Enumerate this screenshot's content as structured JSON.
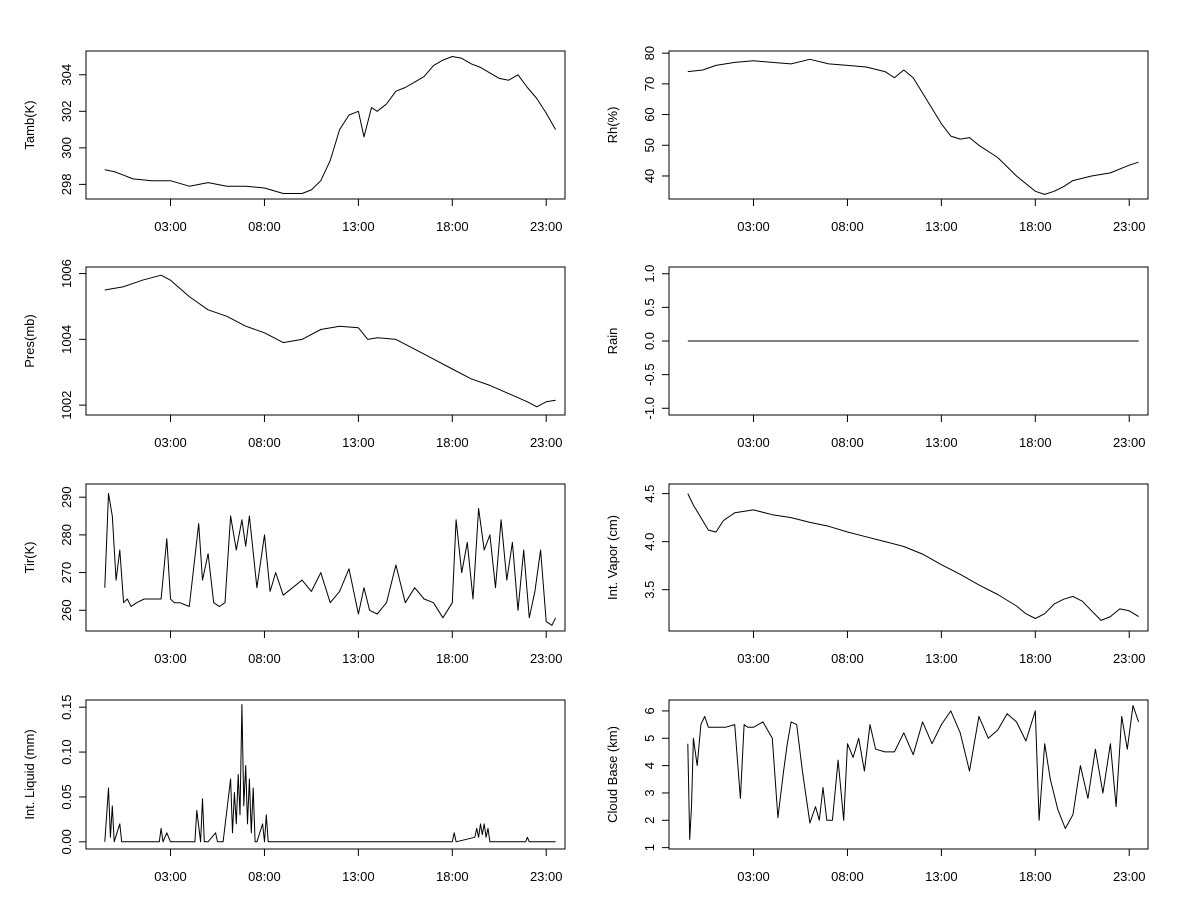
{
  "chart_data": [
    {
      "type": "line",
      "title": "",
      "xlabel": "",
      "ylabel": "Tamb(K)",
      "xlim": [
        -1.5,
        24.0
      ],
      "ylim": [
        297.2,
        305.3
      ],
      "x_ticks": [
        3,
        8,
        13,
        18,
        23
      ],
      "x_tick_labels": [
        "03:00",
        "08:00",
        "13:00",
        "18:00",
        "23:00"
      ],
      "y_ticks": [
        298,
        300,
        302,
        304
      ],
      "y_tick_labels": [
        "298",
        "300",
        "302",
        "304"
      ],
      "series": [
        {
          "name": "Tamb",
          "x": [
            -0.5,
            0,
            0.5,
            1,
            2,
            3,
            4,
            5,
            6,
            7,
            8,
            9,
            10,
            10.5,
            11,
            11.5,
            12,
            12.5,
            13,
            13.3,
            13.7,
            14,
            14.5,
            15,
            15.5,
            16,
            16.5,
            17,
            17.5,
            18,
            18.5,
            19,
            19.5,
            20,
            20.5,
            21,
            21.5,
            22,
            22.5,
            23,
            23.5
          ],
          "y": [
            298.8,
            298.7,
            298.5,
            298.3,
            298.2,
            298.2,
            297.9,
            298.1,
            297.9,
            297.9,
            297.8,
            297.5,
            297.5,
            297.7,
            298.2,
            299.3,
            301.0,
            301.8,
            302.0,
            300.6,
            302.2,
            302.0,
            302.4,
            303.1,
            303.3,
            303.6,
            303.9,
            304.5,
            304.8,
            305.0,
            304.9,
            304.6,
            304.4,
            304.1,
            303.8,
            303.7,
            304.0,
            303.3,
            302.7,
            301.9,
            301.0
          ]
        }
      ]
    },
    {
      "type": "line",
      "title": "",
      "xlabel": "",
      "ylabel": "Rh(%)",
      "xlim": [
        -1.5,
        24.0
      ],
      "ylim": [
        32.5,
        80.7
      ],
      "x_ticks": [
        3,
        8,
        13,
        18,
        23
      ],
      "x_tick_labels": [
        "03:00",
        "08:00",
        "13:00",
        "18:00",
        "23:00"
      ],
      "y_ticks": [
        40,
        50,
        60,
        70,
        80
      ],
      "y_tick_labels": [
        "40",
        "50",
        "60",
        "70",
        "80"
      ],
      "series": [
        {
          "name": "Rh",
          "x": [
            -0.5,
            0.3,
            1,
            2,
            3,
            4,
            5,
            6,
            7,
            8,
            9,
            10,
            10.5,
            11,
            11.5,
            12,
            12.5,
            13,
            13.5,
            14,
            14.5,
            15,
            16,
            17,
            17.5,
            18,
            18.5,
            19,
            19.5,
            20,
            21,
            22,
            23,
            23.5
          ],
          "y": [
            74,
            74.5,
            76,
            77,
            77.5,
            77,
            76.5,
            78,
            76.5,
            76,
            75.5,
            74,
            72,
            74.5,
            72,
            67,
            62,
            57,
            53,
            52,
            52.5,
            50,
            46,
            40,
            37.5,
            35,
            34,
            35,
            36.5,
            38.5,
            40,
            41,
            43.5,
            44.5
          ]
        }
      ]
    },
    {
      "type": "line",
      "title": "",
      "xlabel": "",
      "ylabel": "Pres(mb)",
      "xlim": [
        -1.5,
        24.0
      ],
      "ylim": [
        1001.7,
        1006.2
      ],
      "x_ticks": [
        3,
        8,
        13,
        18,
        23
      ],
      "x_tick_labels": [
        "03:00",
        "08:00",
        "13:00",
        "18:00",
        "23:00"
      ],
      "y_ticks": [
        1002,
        1004,
        1006
      ],
      "y_tick_labels": [
        "1002",
        "1004",
        "1006"
      ],
      "series": [
        {
          "name": "Pres",
          "x": [
            -0.5,
            0.5,
            1.5,
            2.5,
            3,
            4,
            5,
            6,
            7,
            8,
            9,
            10,
            11,
            12,
            13,
            13.5,
            14,
            15,
            16,
            17,
            18,
            19,
            20,
            21,
            22,
            22.5,
            23,
            23.5
          ],
          "y": [
            1005.5,
            1005.6,
            1005.8,
            1005.95,
            1005.8,
            1005.3,
            1004.9,
            1004.7,
            1004.4,
            1004.2,
            1003.9,
            1004.0,
            1004.3,
            1004.4,
            1004.35,
            1004.0,
            1004.05,
            1004.0,
            1003.7,
            1003.4,
            1003.1,
            1002.8,
            1002.6,
            1002.35,
            1002.1,
            1001.95,
            1002.1,
            1002.15
          ]
        }
      ]
    },
    {
      "type": "line",
      "title": "",
      "xlabel": "",
      "ylabel": "Rain",
      "xlim": [
        -1.5,
        24.0
      ],
      "ylim": [
        -1.1,
        1.1
      ],
      "x_ticks": [
        3,
        8,
        13,
        18,
        23
      ],
      "x_tick_labels": [
        "03:00",
        "08:00",
        "13:00",
        "18:00",
        "23:00"
      ],
      "y_ticks": [
        -1.0,
        -0.5,
        0.0,
        0.5,
        1.0
      ],
      "y_tick_labels": [
        "-1.0",
        "-0.5",
        "0.0",
        "0.5",
        "1.0"
      ],
      "series": [
        {
          "name": "Rain",
          "x": [
            -0.5,
            23.5
          ],
          "y": [
            0.0,
            0.0
          ]
        }
      ]
    },
    {
      "type": "line",
      "title": "",
      "xlabel": "",
      "ylabel": "Tir(K)",
      "xlim": [
        -1.5,
        24.0
      ],
      "ylim": [
        254.5,
        293.5
      ],
      "x_ticks": [
        3,
        8,
        13,
        18,
        23
      ],
      "x_tick_labels": [
        "03:00",
        "08:00",
        "13:00",
        "18:00",
        "23:00"
      ],
      "y_ticks": [
        260,
        270,
        280,
        290
      ],
      "y_tick_labels": [
        "260",
        "270",
        "280",
        "290"
      ],
      "series": [
        {
          "name": "Tir",
          "x": [
            -0.5,
            -0.3,
            -0.1,
            0.1,
            0.3,
            0.5,
            0.7,
            0.9,
            1.2,
            1.6,
            2,
            2.5,
            2.8,
            3.0,
            3.2,
            3.5,
            4,
            4.5,
            4.7,
            5.0,
            5.3,
            5.6,
            5.9,
            6.2,
            6.5,
            6.8,
            7.0,
            7.2,
            7.6,
            8.0,
            8.3,
            8.6,
            9.0,
            9.5,
            10,
            10.5,
            11,
            11.5,
            12,
            12.5,
            13,
            13.3,
            13.6,
            14,
            14.5,
            15,
            15.5,
            16,
            16.5,
            17,
            17.5,
            18,
            18.2,
            18.5,
            18.8,
            19.1,
            19.4,
            19.7,
            20,
            20.3,
            20.6,
            20.9,
            21.2,
            21.5,
            21.8,
            22.1,
            22.4,
            22.7,
            23.0,
            23.3,
            23.5
          ],
          "y": [
            266,
            291,
            285,
            268,
            276,
            262,
            263,
            261,
            262,
            263,
            263,
            263,
            279,
            263,
            262,
            262,
            261,
            283,
            268,
            275,
            262,
            261,
            262,
            285,
            276,
            284,
            277,
            285,
            266,
            280,
            265,
            270,
            264,
            266,
            268,
            265,
            270,
            262,
            265,
            271,
            259,
            266,
            260,
            259,
            262,
            272,
            262,
            266,
            263,
            262,
            258,
            262,
            284,
            270,
            278,
            263,
            287,
            276,
            280,
            266,
            284,
            268,
            278,
            260,
            276,
            258,
            265,
            276,
            257,
            256,
            258
          ]
        }
      ]
    },
    {
      "type": "line",
      "title": "",
      "xlabel": "",
      "ylabel": "Int. Vapor (cm)",
      "xlim": [
        -1.5,
        24.0
      ],
      "ylim": [
        3.07,
        4.6
      ],
      "x_ticks": [
        3,
        8,
        13,
        18,
        23
      ],
      "x_tick_labels": [
        "03:00",
        "08:00",
        "13:00",
        "18:00",
        "23:00"
      ],
      "y_ticks": [
        3.5,
        4.0,
        4.5
      ],
      "y_tick_labels": [
        "3.5",
        "4.0",
        "4.5"
      ],
      "series": [
        {
          "name": "Int. Vapor",
          "x": [
            -0.5,
            -0.2,
            0.2,
            0.6,
            1.0,
            1.4,
            2,
            3,
            4,
            5,
            6,
            7,
            8,
            9,
            10,
            11,
            12,
            13,
            14,
            15,
            16,
            17,
            17.5,
            18,
            18.5,
            19,
            19.5,
            20,
            20.5,
            21,
            21.5,
            22,
            22.5,
            23,
            23.5
          ],
          "y": [
            4.5,
            4.38,
            4.25,
            4.12,
            4.1,
            4.22,
            4.3,
            4.33,
            4.28,
            4.25,
            4.2,
            4.16,
            4.1,
            4.05,
            4.0,
            3.95,
            3.87,
            3.76,
            3.66,
            3.55,
            3.45,
            3.33,
            3.25,
            3.2,
            3.25,
            3.35,
            3.4,
            3.43,
            3.38,
            3.28,
            3.18,
            3.22,
            3.3,
            3.28,
            3.22
          ]
        }
      ]
    },
    {
      "type": "line",
      "title": "",
      "xlabel": "",
      "ylabel": "Int. Liquid (mm)",
      "xlim": [
        -1.5,
        24.0
      ],
      "ylim": [
        -0.008,
        0.158
      ],
      "x_ticks": [
        3,
        8,
        13,
        18,
        23
      ],
      "x_tick_labels": [
        "03:00",
        "08:00",
        "13:00",
        "18:00",
        "23:00"
      ],
      "y_ticks": [
        0.0,
        0.05,
        0.1,
        0.15
      ],
      "y_tick_labels": [
        "0.00",
        "0.05",
        "0.10",
        "0.15"
      ],
      "series": [
        {
          "name": "Int. Liquid",
          "x": [
            -0.5,
            -0.3,
            -0.2,
            -0.1,
            0.0,
            0.3,
            0.4,
            0.6,
            2.4,
            2.5,
            2.6,
            2.8,
            3.0,
            4.3,
            4.4,
            4.6,
            4.7,
            4.8,
            5.0,
            5.4,
            5.5,
            5.8,
            6.2,
            6.3,
            6.4,
            6.5,
            6.6,
            6.7,
            6.8,
            6.9,
            7.0,
            7.1,
            7.2,
            7.3,
            7.4,
            7.5,
            7.6,
            7.9,
            8.0,
            8.1,
            8.2,
            18.0,
            18.1,
            18.2,
            19.2,
            19.3,
            19.4,
            19.5,
            19.6,
            19.7,
            19.8,
            19.9,
            20.0,
            21.9,
            22.0,
            22.1,
            23.5
          ],
          "y": [
            0,
            0.06,
            0.005,
            0.04,
            0,
            0.02,
            0,
            0,
            0,
            0.015,
            0,
            0.01,
            0,
            0,
            0.035,
            0,
            0.048,
            0,
            0,
            0.01,
            0,
            0,
            0.07,
            0.01,
            0.055,
            0.02,
            0.075,
            0.03,
            0.153,
            0.04,
            0.085,
            0.02,
            0.07,
            0.01,
            0.06,
            0,
            0,
            0.02,
            0,
            0.03,
            0,
            0,
            0.01,
            0,
            0.005,
            0.015,
            0.005,
            0.02,
            0.008,
            0.02,
            0.005,
            0.015,
            0,
            0,
            0.005,
            0,
            0
          ]
        }
      ]
    },
    {
      "type": "line",
      "title": "",
      "xlabel": "",
      "ylabel": "Cloud Base (km)",
      "xlim": [
        -1.5,
        24.0
      ],
      "ylim": [
        0.95,
        6.4
      ],
      "x_ticks": [
        3,
        8,
        13,
        18,
        23
      ],
      "x_tick_labels": [
        "03:00",
        "08:00",
        "13:00",
        "18:00",
        "23:00"
      ],
      "y_ticks": [
        1,
        2,
        3,
        4,
        5,
        6
      ],
      "y_tick_labels": [
        "1",
        "2",
        "3",
        "4",
        "5",
        "6"
      ],
      "series": [
        {
          "name": "Cloud Base",
          "x": [
            -0.5,
            -0.4,
            -0.3,
            -0.2,
            0.0,
            0.2,
            0.4,
            0.6,
            1.0,
            1.5,
            2.0,
            2.3,
            2.5,
            2.7,
            3.0,
            3.5,
            4.0,
            4.3,
            4.6,
            4.8,
            5.0,
            5.3,
            5.6,
            6.0,
            6.3,
            6.5,
            6.7,
            6.9,
            7.2,
            7.5,
            7.8,
            8.0,
            8.3,
            8.6,
            8.9,
            9.2,
            9.5,
            10.0,
            10.5,
            11.0,
            11.5,
            12,
            12.5,
            13,
            13.5,
            14,
            14.5,
            15,
            15.5,
            16,
            16.5,
            17,
            17.5,
            18.0,
            18.2,
            18.5,
            18.8,
            19.2,
            19.6,
            20.0,
            20.4,
            20.8,
            21.2,
            21.6,
            22.0,
            22.3,
            22.6,
            22.9,
            23.2,
            23.5
          ],
          "y": [
            4.8,
            1.3,
            2.5,
            5.0,
            4.0,
            5.5,
            5.8,
            5.4,
            5.4,
            5.4,
            5.5,
            2.8,
            5.5,
            5.4,
            5.4,
            5.6,
            5.0,
            2.1,
            3.8,
            4.8,
            5.6,
            5.5,
            3.8,
            1.9,
            2.5,
            2.0,
            3.2,
            2.0,
            2.0,
            4.2,
            2.0,
            4.8,
            4.3,
            5.0,
            3.8,
            5.5,
            4.6,
            4.5,
            4.5,
            5.2,
            4.4,
            5.6,
            4.8,
            5.5,
            6.0,
            5.2,
            3.8,
            5.8,
            5.0,
            5.3,
            5.9,
            5.6,
            4.9,
            6.0,
            2.0,
            4.8,
            3.5,
            2.4,
            1.7,
            2.2,
            4.0,
            2.8,
            4.6,
            3.0,
            4.8,
            2.5,
            5.8,
            4.6,
            6.2,
            5.6
          ]
        }
      ]
    }
  ]
}
